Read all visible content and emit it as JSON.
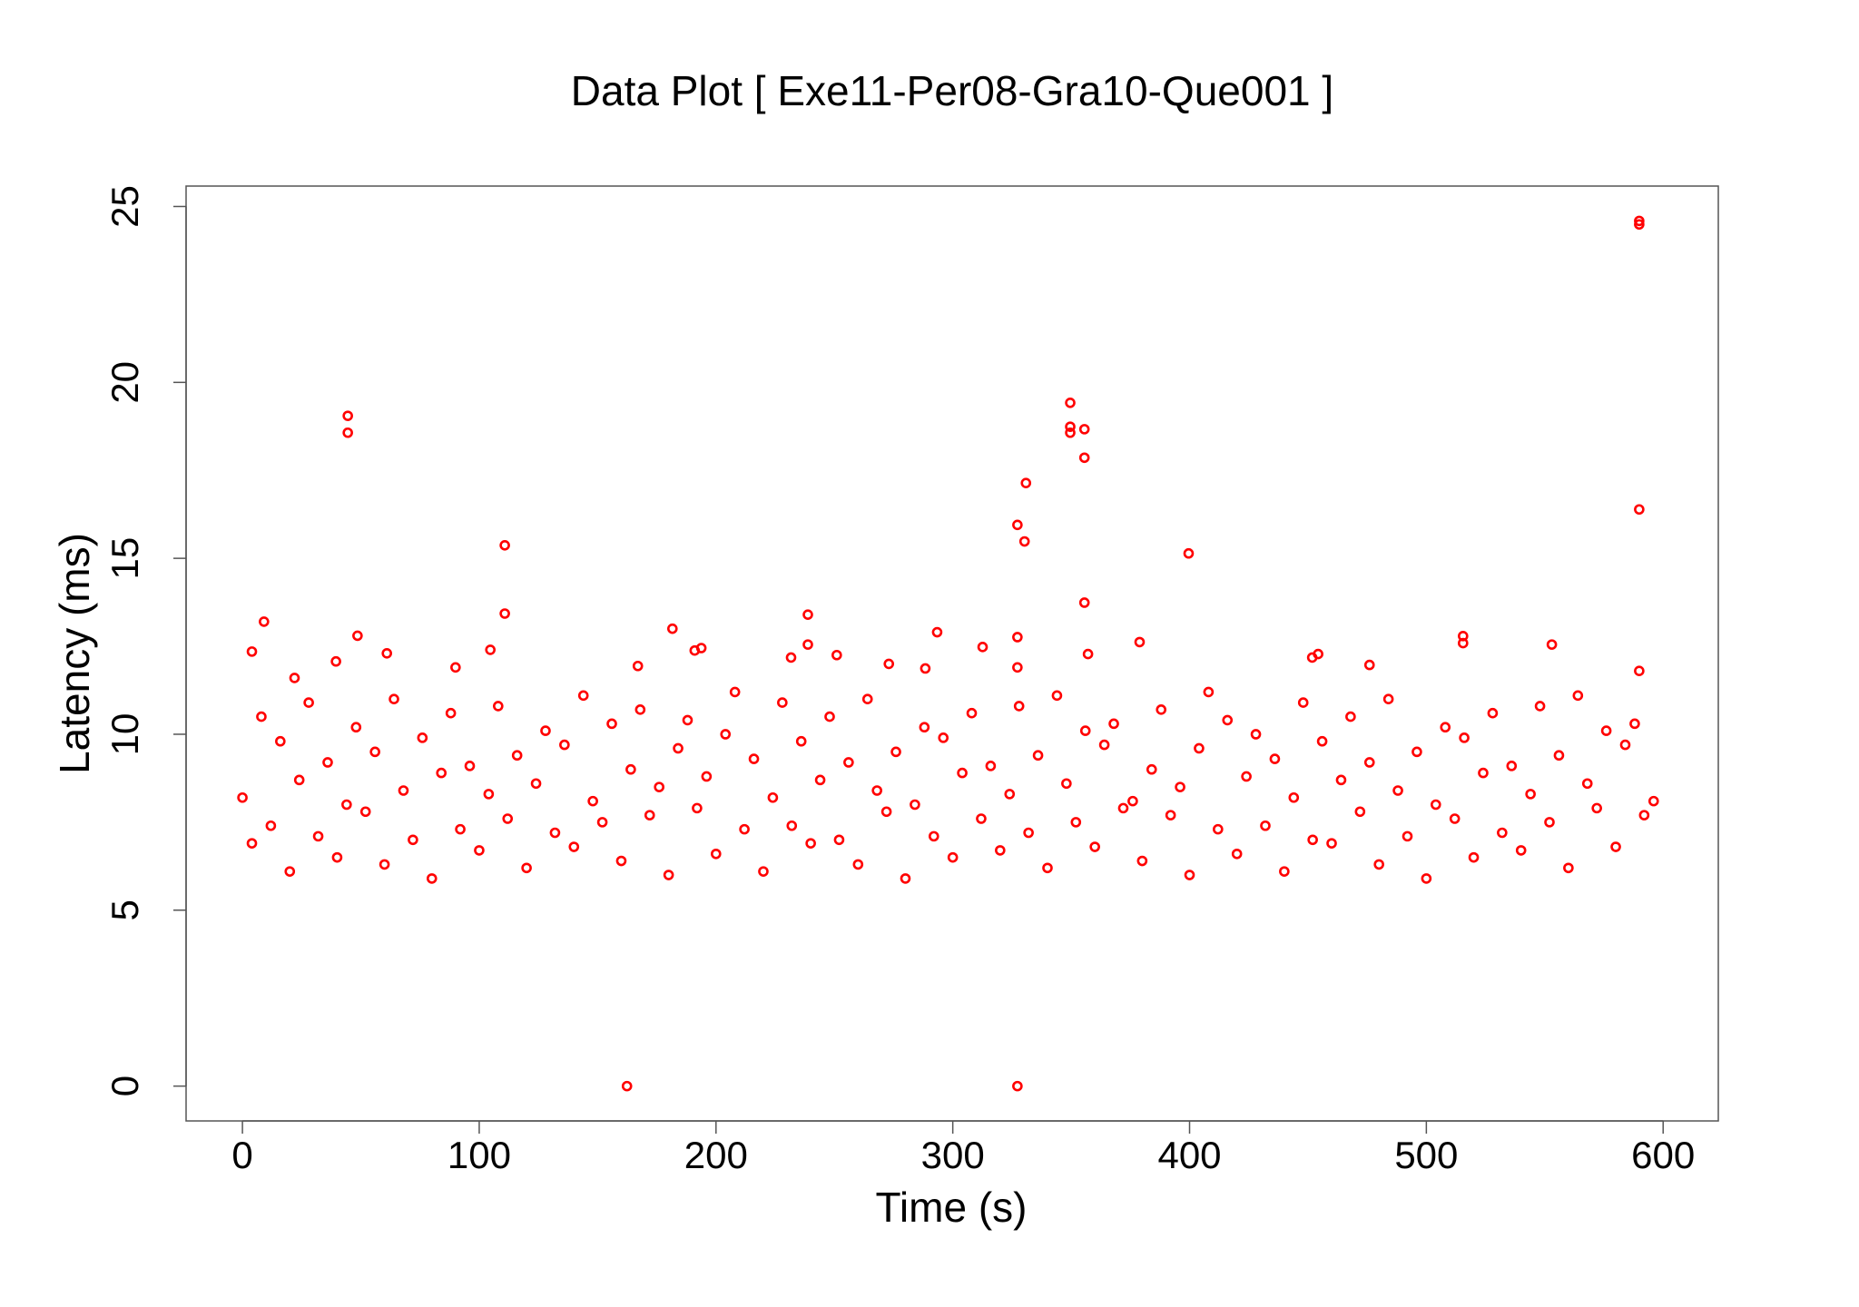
{
  "chart_data": {
    "type": "scatter",
    "title": "Data Plot [ Exe11-Per08-Gra10-Que001 ]",
    "x_label": "Time (s)",
    "y_label": "Latency (ms)",
    "color": "#ff0000",
    "xlim": [
      -23.8,
      623.3
    ],
    "ylim": [
      -0.99,
      25.58
    ],
    "xticks": [
      0,
      100,
      200,
      300,
      400,
      500,
      600
    ],
    "yticks": [
      0,
      5,
      10,
      15,
      20,
      25
    ],
    "x": [
      0,
      4,
      8,
      12,
      16,
      20,
      24,
      28,
      32,
      36,
      40,
      44,
      48,
      52,
      56,
      60,
      64,
      68,
      72,
      76,
      80,
      84,
      88,
      92,
      96,
      100,
      104,
      108,
      112,
      116,
      120,
      124,
      128,
      132,
      136,
      140,
      144,
      148,
      152,
      156,
      160,
      164,
      168,
      172,
      176,
      180,
      184,
      188,
      192,
      196,
      200,
      204,
      208,
      212,
      216,
      220,
      224,
      228,
      232,
      236,
      240,
      244,
      248,
      252,
      256,
      260,
      264,
      268,
      272,
      276,
      280,
      284,
      288,
      292,
      296,
      300,
      304,
      308,
      312,
      316,
      320,
      324,
      328,
      332,
      336,
      340,
      344,
      348,
      352,
      356,
      360,
      364,
      368,
      372,
      376,
      380,
      384,
      388,
      392,
      396,
      400,
      404,
      408,
      412,
      416,
      420,
      424,
      428,
      432,
      436,
      440,
      444,
      448,
      452,
      456,
      460,
      464,
      468,
      472,
      476,
      480,
      484,
      488,
      492,
      496,
      500,
      504,
      508,
      512,
      516,
      520,
      524,
      528,
      532,
      536,
      540,
      544,
      548,
      552,
      556,
      560,
      564,
      568,
      572,
      576,
      580,
      584,
      588,
      592,
      596,
      44.5,
      44.5,
      9.1,
      4,
      39.5,
      48.6,
      61,
      22,
      90,
      104.7,
      110.8,
      110.8,
      167,
      162.4,
      181.6,
      191,
      193.8,
      231.7,
      238.8,
      238.8,
      251,
      273,
      288.4,
      293.4,
      312.6,
      327.3,
      327.3,
      327.3,
      327.3,
      330.3,
      330.9,
      349.6,
      349.6,
      349.6,
      355.6,
      355.6,
      355.6,
      357.1,
      378.9,
      399.6,
      451.8,
      454.3,
      476,
      515.5,
      515.5,
      553,
      589.9,
      589.9,
      589.9,
      589.9
    ],
    "values": [
      8.2,
      6.9,
      10.5,
      7.4,
      9.8,
      6.1,
      8.7,
      10.9,
      7.1,
      9.2,
      6.5,
      8.0,
      10.2,
      7.8,
      9.5,
      6.3,
      11.0,
      8.4,
      7.0,
      9.9,
      5.9,
      8.9,
      10.6,
      7.3,
      9.1,
      6.7,
      8.3,
      10.8,
      7.6,
      9.4,
      6.2,
      8.6,
      10.1,
      7.2,
      9.7,
      6.8,
      11.1,
      8.1,
      7.5,
      10.3,
      6.4,
      9.0,
      10.7,
      7.7,
      8.5,
      6.0,
      9.6,
      10.4,
      7.9,
      8.8,
      6.6,
      10.0,
      11.2,
      7.3,
      9.3,
      6.1,
      8.2,
      10.9,
      7.4,
      9.8,
      6.9,
      8.7,
      10.5,
      7.0,
      9.2,
      6.3,
      11.0,
      8.4,
      7.8,
      9.5,
      5.9,
      8.0,
      10.2,
      7.1,
      9.9,
      6.5,
      8.9,
      10.6,
      7.6,
      9.1,
      6.7,
      8.3,
      10.8,
      7.2,
      9.4,
      6.2,
      11.1,
      8.6,
      7.5,
      10.1,
      6.8,
      9.7,
      10.3,
      7.9,
      8.1,
      6.4,
      9.0,
      10.7,
      7.7,
      8.5,
      6.0,
      9.6,
      11.2,
      7.3,
      10.4,
      6.6,
      8.8,
      10.0,
      7.4,
      9.3,
      6.1,
      8.2,
      10.9,
      7.0,
      9.8,
      6.9,
      8.7,
      10.5,
      7.8,
      9.2,
      6.3,
      11.0,
      8.4,
      7.1,
      9.5,
      5.9,
      8.0,
      10.2,
      7.6,
      9.9,
      6.5,
      8.9,
      10.6,
      7.2,
      9.1,
      6.7,
      8.3,
      10.8,
      7.5,
      9.4,
      6.2,
      11.1,
      8.6,
      7.9,
      10.1,
      6.8,
      9.7,
      10.3,
      7.7,
      8.1,
      19.05,
      18.57,
      13.2,
      12.35,
      12.07,
      12.8,
      12.3,
      11.6,
      11.9,
      12.4,
      15.37,
      13.43,
      11.94,
      0,
      13,
      12.38,
      12.45,
      12.18,
      13.4,
      12.55,
      12.25,
      12,
      11.87,
      12.9,
      12.48,
      15.95,
      12.76,
      11.9,
      0,
      15.48,
      17.14,
      19.42,
      18.74,
      18.57,
      18.67,
      17.86,
      13.74,
      12.28,
      12.62,
      15.14,
      12.18,
      12.28,
      11.97,
      12.79,
      12.59,
      12.55,
      24.59,
      24.49,
      16.39,
      11.8
    ]
  }
}
